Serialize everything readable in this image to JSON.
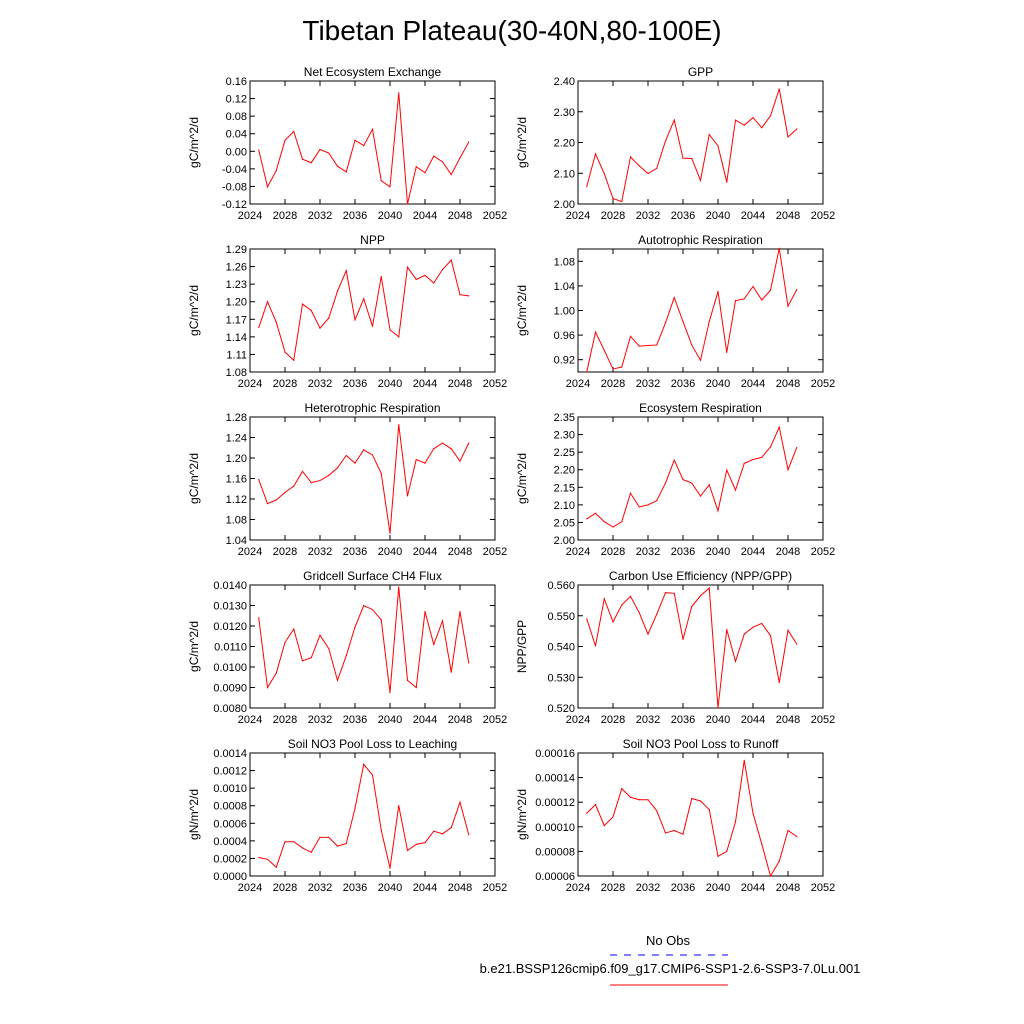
{
  "title": "Tibetan Plateau(30-40N,80-100E)",
  "line_color": "#ff0000",
  "legend": {
    "obs_label": "No Obs",
    "obs_color": "#0000ff",
    "model_label": "b.e21.BSSP126cmip6.f09_g17.CMIP6-SSP1-2.6-SSP3-7.0Lu.001",
    "model_color": "#ff0000"
  },
  "chart_data": [
    {
      "type": "line",
      "title": "Net Ecosystem Exchange",
      "ylabel": "gC/m^2/d",
      "xlim": [
        2024,
        2052
      ],
      "xticks": [
        2024,
        2028,
        2032,
        2036,
        2040,
        2044,
        2048,
        2052
      ],
      "ylim": [
        -0.12,
        0.16
      ],
      "yticks": [
        "-0.12",
        "-0.08",
        "-0.04",
        "0.00",
        "0.04",
        "0.08",
        "0.12",
        "0.16"
      ],
      "x": [
        2025,
        2026,
        2027,
        2028,
        2029,
        2030,
        2031,
        2032,
        2033,
        2034,
        2035,
        2036,
        2037,
        2038,
        2039,
        2040,
        2041,
        2042,
        2043,
        2044,
        2045,
        2046,
        2047,
        2048,
        2049
      ],
      "y": [
        0.003,
        -0.081,
        -0.044,
        0.025,
        0.045,
        -0.018,
        -0.026,
        0.004,
        -0.004,
        -0.034,
        -0.047,
        0.025,
        0.013,
        0.05,
        -0.067,
        -0.081,
        0.133,
        -0.12,
        -0.035,
        -0.049,
        -0.011,
        -0.024,
        -0.053,
        -0.015,
        0.021
      ]
    },
    {
      "type": "line",
      "title": "GPP",
      "ylabel": "gC/m^2/d",
      "xlim": [
        2024,
        2052
      ],
      "xticks": [
        2024,
        2028,
        2032,
        2036,
        2040,
        2044,
        2048,
        2052
      ],
      "ylim": [
        2.0,
        2.4
      ],
      "yticks": [
        "2.00",
        "2.10",
        "2.20",
        "2.30",
        "2.40"
      ],
      "x": [
        2025,
        2026,
        2027,
        2028,
        2029,
        2030,
        2031,
        2032,
        2033,
        2034,
        2035,
        2036,
        2037,
        2038,
        2039,
        2040,
        2041,
        2042,
        2043,
        2044,
        2045,
        2046,
        2047,
        2048,
        2049
      ],
      "y": [
        2.057,
        2.163,
        2.099,
        2.018,
        2.008,
        2.153,
        2.124,
        2.099,
        2.116,
        2.205,
        2.273,
        2.149,
        2.148,
        2.077,
        2.226,
        2.189,
        2.071,
        2.273,
        2.256,
        2.281,
        2.248,
        2.287,
        2.374,
        2.218,
        2.244
      ]
    },
    {
      "type": "line",
      "title": "NPP",
      "ylabel": "gC/m^2/d",
      "xlim": [
        2024,
        2052
      ],
      "xticks": [
        2024,
        2028,
        2032,
        2036,
        2040,
        2044,
        2048,
        2052
      ],
      "ylim": [
        1.08,
        1.29
      ],
      "yticks": [
        "1.08",
        "1.11",
        "1.14",
        "1.17",
        "1.20",
        "1.23",
        "1.26",
        "1.29"
      ],
      "x": [
        2025,
        2026,
        2027,
        2028,
        2029,
        2030,
        2031,
        2032,
        2033,
        2034,
        2035,
        2036,
        2037,
        2038,
        2039,
        2040,
        2041,
        2042,
        2043,
        2044,
        2045,
        2046,
        2047,
        2048,
        2049
      ],
      "y": [
        1.156,
        1.2,
        1.165,
        1.114,
        1.1,
        1.196,
        1.185,
        1.155,
        1.172,
        1.218,
        1.253,
        1.169,
        1.205,
        1.158,
        1.243,
        1.152,
        1.14,
        1.259,
        1.238,
        1.245,
        1.232,
        1.255,
        1.271,
        1.212,
        1.21
      ]
    },
    {
      "type": "line",
      "title": "Autotrophic Respiration",
      "ylabel": "gC/m^2/d",
      "xlim": [
        2024,
        2052
      ],
      "xticks": [
        2024,
        2028,
        2032,
        2036,
        2040,
        2044,
        2048,
        2052
      ],
      "ylim": [
        0.9,
        1.1
      ],
      "yticks": [
        "0.92",
        "0.96",
        "1.00",
        "1.04",
        "1.08"
      ],
      "x": [
        2025,
        2026,
        2027,
        2028,
        2029,
        2030,
        2031,
        2032,
        2033,
        2034,
        2035,
        2036,
        2037,
        2038,
        2039,
        2040,
        2041,
        2042,
        2043,
        2044,
        2045,
        2046,
        2047,
        2048,
        2049
      ],
      "y": [
        0.9,
        0.965,
        0.935,
        0.905,
        0.908,
        0.958,
        0.942,
        0.943,
        0.944,
        0.98,
        1.021,
        0.982,
        0.944,
        0.919,
        0.982,
        1.031,
        0.932,
        1.016,
        1.019,
        1.039,
        1.017,
        1.033,
        1.101,
        1.007,
        1.034
      ]
    },
    {
      "type": "line",
      "title": "Heterotrophic Respiration",
      "ylabel": "gC/m^2/d",
      "xlim": [
        2024,
        2052
      ],
      "xticks": [
        2024,
        2028,
        2032,
        2036,
        2040,
        2044,
        2048,
        2052
      ],
      "ylim": [
        1.04,
        1.28
      ],
      "yticks": [
        "1.04",
        "1.08",
        "1.12",
        "1.16",
        "1.20",
        "1.24",
        "1.28"
      ],
      "x": [
        2025,
        2026,
        2027,
        2028,
        2029,
        2030,
        2031,
        2032,
        2033,
        2034,
        2035,
        2036,
        2037,
        2038,
        2039,
        2040,
        2041,
        2042,
        2043,
        2044,
        2045,
        2046,
        2047,
        2048,
        2049
      ],
      "y": [
        1.158,
        1.111,
        1.118,
        1.133,
        1.145,
        1.174,
        1.152,
        1.156,
        1.166,
        1.181,
        1.205,
        1.19,
        1.216,
        1.206,
        1.17,
        1.053,
        1.265,
        1.126,
        1.197,
        1.19,
        1.218,
        1.229,
        1.218,
        1.194,
        1.229
      ]
    },
    {
      "type": "line",
      "title": "Ecosystem Respiration",
      "ylabel": "gC/m^2/d",
      "xlim": [
        2024,
        2052
      ],
      "xticks": [
        2024,
        2028,
        2032,
        2036,
        2040,
        2044,
        2048,
        2052
      ],
      "ylim": [
        2.0,
        2.35
      ],
      "yticks": [
        "2.00",
        "2.05",
        "2.10",
        "2.15",
        "2.20",
        "2.25",
        "2.30",
        "2.35"
      ],
      "x": [
        2025,
        2026,
        2027,
        2028,
        2029,
        2030,
        2031,
        2032,
        2033,
        2034,
        2035,
        2036,
        2037,
        2038,
        2039,
        2040,
        2041,
        2042,
        2043,
        2044,
        2045,
        2046,
        2047,
        2048,
        2049
      ],
      "y": [
        2.06,
        2.076,
        2.052,
        2.037,
        2.052,
        2.133,
        2.094,
        2.1,
        2.112,
        2.162,
        2.227,
        2.172,
        2.162,
        2.125,
        2.157,
        2.083,
        2.199,
        2.142,
        2.218,
        2.229,
        2.235,
        2.265,
        2.321,
        2.2,
        2.263
      ]
    },
    {
      "type": "line",
      "title": "Gridcell Surface CH4 Flux",
      "ylabel": "gC/m^2/d",
      "xlim": [
        2024,
        2052
      ],
      "xticks": [
        2024,
        2028,
        2032,
        2036,
        2040,
        2044,
        2048,
        2052
      ],
      "ylim": [
        0.008,
        0.014
      ],
      "yticks": [
        "0.0080",
        "0.0090",
        "0.0100",
        "0.0110",
        "0.0120",
        "0.0130",
        "0.0140"
      ],
      "x": [
        2025,
        2026,
        2027,
        2028,
        2029,
        2030,
        2031,
        2032,
        2033,
        2034,
        2035,
        2036,
        2037,
        2038,
        2039,
        2040,
        2041,
        2042,
        2043,
        2044,
        2045,
        2046,
        2047,
        2048,
        2049
      ],
      "y": [
        0.0124,
        0.009,
        0.0097,
        0.0112,
        0.01185,
        0.0103,
        0.01045,
        0.01155,
        0.0109,
        0.00935,
        0.01055,
        0.01195,
        0.013,
        0.0128,
        0.0123,
        0.00875,
        0.0139,
        0.00935,
        0.009,
        0.0127,
        0.0111,
        0.01225,
        0.00975,
        0.0127,
        0.0102
      ]
    },
    {
      "type": "line",
      "title": "Carbon Use Efficiency (NPP/GPP)",
      "ylabel": "NPP/GPP",
      "xlim": [
        2024,
        2052
      ],
      "xticks": [
        2024,
        2028,
        2032,
        2036,
        2040,
        2044,
        2048,
        2052
      ],
      "ylim": [
        0.52,
        0.56
      ],
      "yticks": [
        "0.520",
        "0.530",
        "0.540",
        "0.550",
        "0.560"
      ],
      "x": [
        2025,
        2026,
        2027,
        2028,
        2029,
        2030,
        2031,
        2032,
        2033,
        2034,
        2035,
        2036,
        2037,
        2038,
        2039,
        2040,
        2041,
        2042,
        2043,
        2044,
        2045,
        2046,
        2047,
        2048,
        2049
      ],
      "y": [
        0.549,
        0.5402,
        0.5555,
        0.548,
        0.5535,
        0.5563,
        0.551,
        0.544,
        0.5505,
        0.5575,
        0.5573,
        0.5423,
        0.553,
        0.5565,
        0.559,
        0.52,
        0.5455,
        0.5352,
        0.544,
        0.5463,
        0.5475,
        0.5435,
        0.5283,
        0.5453,
        0.5408
      ]
    },
    {
      "type": "line",
      "title": "Soil NO3 Pool Loss to Leaching",
      "ylabel": "gN/m^2/d",
      "xlim": [
        2024,
        2052
      ],
      "xticks": [
        2024,
        2028,
        2032,
        2036,
        2040,
        2044,
        2048,
        2052
      ],
      "ylim": [
        0.0,
        0.0014
      ],
      "yticks": [
        "0.0000",
        "0.0002",
        "0.0004",
        "0.0006",
        "0.0008",
        "0.0010",
        "0.0012",
        "0.0014"
      ],
      "x": [
        2025,
        2026,
        2027,
        2028,
        2029,
        2030,
        2031,
        2032,
        2033,
        2034,
        2035,
        2036,
        2037,
        2038,
        2039,
        2040,
        2041,
        2042,
        2043,
        2044,
        2045,
        2046,
        2047,
        2048,
        2049
      ],
      "y": [
        0.00021,
        0.00019,
        0.0001,
        0.00039,
        0.00039,
        0.00032,
        0.00027,
        0.00044,
        0.00044,
        0.00034,
        0.00037,
        0.00077,
        0.00127,
        0.00115,
        0.00052,
        9e-05,
        0.0008,
        0.00029,
        0.00036,
        0.00038,
        0.00051,
        0.00048,
        0.00055,
        0.00084,
        0.00047
      ]
    },
    {
      "type": "line",
      "title": "Soil NO3 Pool Loss to Runoff",
      "ylabel": "gN/m^2/d",
      "xlim": [
        2024,
        2052
      ],
      "xticks": [
        2024,
        2028,
        2032,
        2036,
        2040,
        2044,
        2048,
        2052
      ],
      "ylim": [
        6e-05,
        0.00016
      ],
      "yticks": [
        "0.00006",
        "0.00008",
        "0.00010",
        "0.00012",
        "0.00014",
        "0.00016"
      ],
      "x": [
        2025,
        2026,
        2027,
        2028,
        2029,
        2030,
        2031,
        2032,
        2033,
        2034,
        2035,
        2036,
        2037,
        2038,
        2039,
        2040,
        2041,
        2042,
        2043,
        2044,
        2045,
        2046,
        2047,
        2048,
        2049
      ],
      "y": [
        0.000111,
        0.000118,
        0.000101,
        0.000108,
        0.000131,
        0.000124,
        0.000122,
        0.000122,
        0.000113,
        9.5e-05,
        9.7e-05,
        9.4e-05,
        0.000123,
        0.000121,
        0.000114,
        7.6e-05,
        8e-05,
        0.000104,
        0.000154,
        0.000111,
        8.6e-05,
        6e-05,
        7.2e-05,
        9.7e-05,
        9.2e-05
      ]
    }
  ]
}
